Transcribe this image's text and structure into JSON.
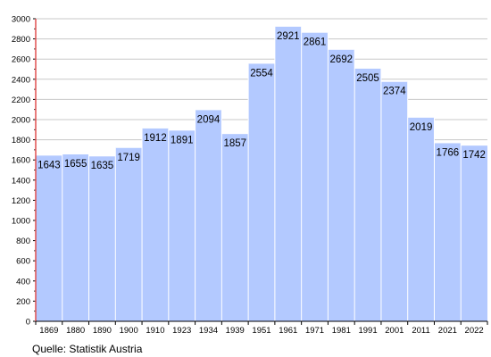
{
  "chart_data": {
    "type": "bar",
    "categories": [
      "1869",
      "1880",
      "1890",
      "1900",
      "1910",
      "1923",
      "1934",
      "1939",
      "1951",
      "1961",
      "1971",
      "1981",
      "1991",
      "2001",
      "2011",
      "2021",
      "2022"
    ],
    "values": [
      1643,
      1655,
      1635,
      1719,
      1912,
      1891,
      2094,
      1857,
      2554,
      2921,
      2861,
      2692,
      2505,
      2374,
      2019,
      1766,
      1742
    ],
    "title": "",
    "xlabel": "",
    "ylabel": "",
    "ylim": [
      0,
      3000
    ],
    "yticks": [
      0,
      200,
      400,
      600,
      800,
      1000,
      1200,
      1400,
      1600,
      1800,
      2000,
      2200,
      2400,
      2600,
      2800,
      3000
    ],
    "grid": true,
    "legend": "none",
    "bar_color": "#b3c9ff",
    "grid_color": "#c8c8c8"
  },
  "source": "Quelle: Statistik Austria"
}
